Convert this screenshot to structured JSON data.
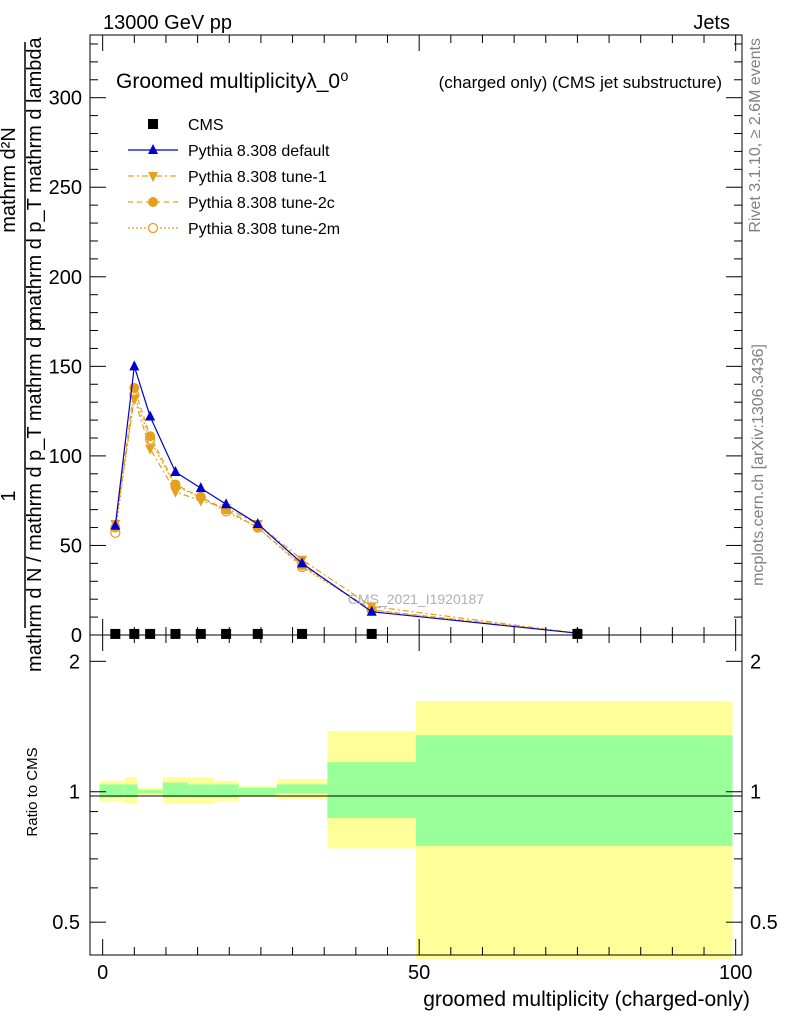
{
  "header": {
    "left": "13000 GeV pp",
    "right": "Jets"
  },
  "side_text": {
    "rivet": "Rivet 3.1.10, ≥ 2.6M events",
    "mcplots": "mcplots.cern.ch [arXiv:1306.3436]"
  },
  "watermark": "CMS_2021_I1920187",
  "colors": {
    "cms": "#000000",
    "default": "#0000cc",
    "tunes": "#e5a01e",
    "band_outer": "#ffff99",
    "band_inner": "#99ff99"
  },
  "chart_data": [
    {
      "type": "line",
      "title": "Groomed multiplicityλ_0⁰",
      "title_suffix": "(charged only) (CMS jet substructure)",
      "ylabel_parts": [
        "1",
        "mathrm d N / mathrm d p_T mathrm d p",
        "mathrm d²N",
        "mathrm d p_T mathrm d lambda"
      ],
      "xlim": [
        -2,
        101
      ],
      "ylim": [
        0,
        335
      ],
      "yticks": [
        0,
        50,
        100,
        150,
        200,
        250,
        300
      ],
      "legend": "top-left",
      "x": [
        2,
        5,
        7.5,
        11.5,
        15.5,
        19.5,
        24.5,
        31.5,
        42.5,
        75
      ],
      "series": [
        {
          "name": "CMS",
          "marker": "square",
          "values": [
            0.6,
            0.6,
            0.6,
            0.6,
            0.6,
            0.6,
            0.6,
            0.6,
            0.6,
            0.6
          ]
        },
        {
          "name": "Pythia 8.308 default",
          "marker": "triangle-up",
          "values": [
            61,
            150,
            122,
            91,
            82,
            73,
            62,
            40,
            13,
            1
          ]
        },
        {
          "name": "Pythia 8.308 tune-1",
          "marker": "triangle-down",
          "values": [
            62,
            132,
            104,
            80,
            75,
            71,
            62,
            42,
            16,
            1
          ]
        },
        {
          "name": "Pythia 8.308 tune-2c",
          "marker": "circle",
          "values": [
            60,
            138,
            111,
            84,
            77,
            70,
            60,
            39,
            14,
            1
          ]
        },
        {
          "name": "Pythia 8.308 tune-2m",
          "marker": "circle-open",
          "values": [
            57,
            134,
            109,
            83,
            77,
            69,
            60,
            38,
            14,
            1
          ]
        }
      ]
    },
    {
      "type": "area",
      "ylabel": "Ratio to CMS",
      "xlabel": "groomed multiplicity (charged-only)",
      "xlim": [
        -2,
        101
      ],
      "ylim": [
        0.42,
        2.3
      ],
      "log_y": true,
      "yticks": [
        0.5,
        1,
        2
      ],
      "xticks": [
        0,
        50,
        100
      ],
      "bins": [
        {
          "x0": -0.5,
          "x1": 3.5,
          "outer": [
            0.95,
            1.06
          ],
          "inner": [
            0.97,
            1.04
          ]
        },
        {
          "x0": 3.5,
          "x1": 5.5,
          "outer": [
            0.94,
            1.08
          ],
          "inner": [
            0.97,
            1.04
          ]
        },
        {
          "x0": 5.5,
          "x1": 9.5,
          "outer": [
            0.98,
            1.02
          ],
          "inner": [
            0.99,
            1.01
          ]
        },
        {
          "x0": 9.5,
          "x1": 13.5,
          "outer": [
            0.94,
            1.08
          ],
          "inner": [
            0.97,
            1.05
          ]
        },
        {
          "x0": 13.5,
          "x1": 17.5,
          "outer": [
            0.94,
            1.08
          ],
          "inner": [
            0.97,
            1.04
          ]
        },
        {
          "x0": 17.5,
          "x1": 21.5,
          "outer": [
            0.95,
            1.06
          ],
          "inner": [
            0.97,
            1.04
          ]
        },
        {
          "x0": 21.5,
          "x1": 27.5,
          "outer": [
            0.97,
            1.03
          ],
          "inner": [
            0.98,
            1.02
          ]
        },
        {
          "x0": 27.5,
          "x1": 35.5,
          "outer": [
            0.96,
            1.07
          ],
          "inner": [
            0.99,
            1.04
          ]
        },
        {
          "x0": 35.5,
          "x1": 49.5,
          "outer": [
            0.74,
            1.38
          ],
          "inner": [
            0.87,
            1.17
          ]
        },
        {
          "x0": 49.5,
          "x1": 99.5,
          "outer": [
            0.41,
            1.62
          ],
          "inner": [
            0.75,
            1.35
          ]
        }
      ]
    }
  ]
}
